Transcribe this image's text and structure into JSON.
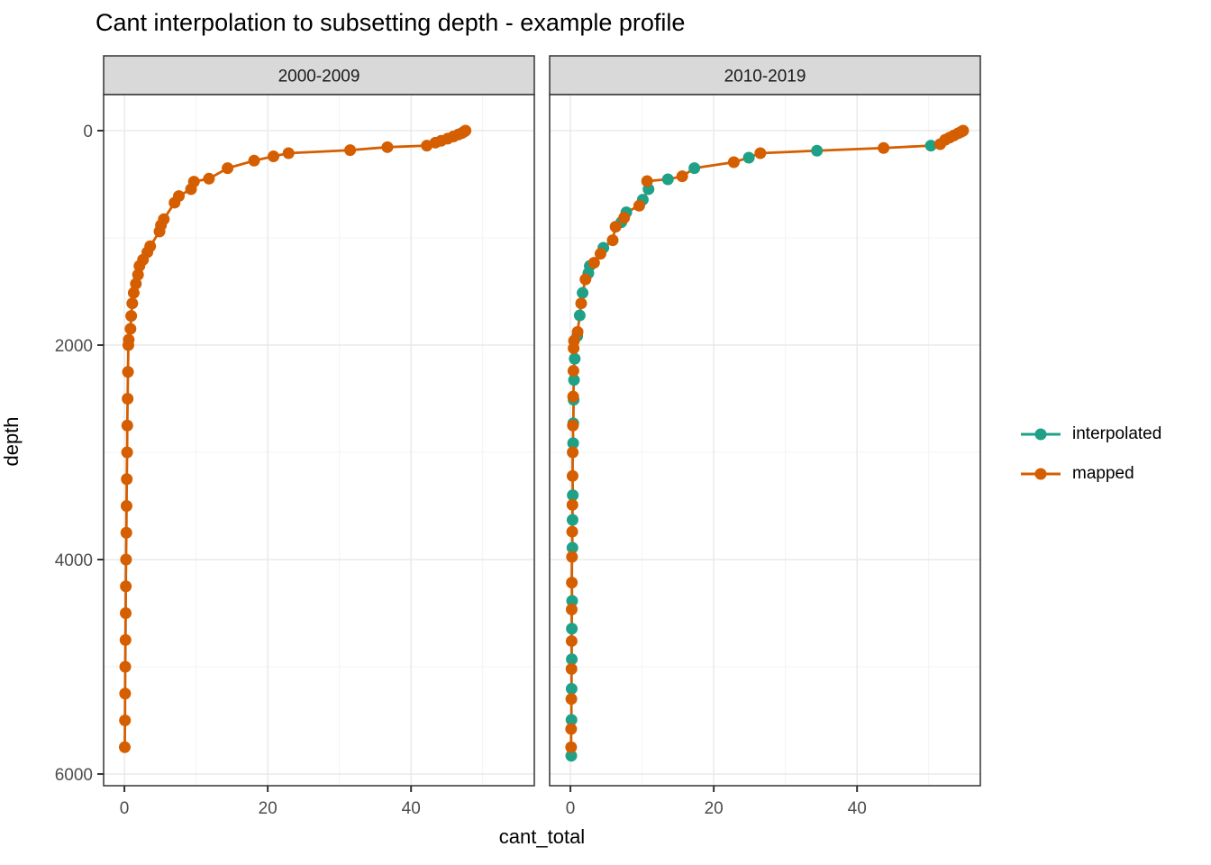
{
  "title": "Cant interpolation to subsetting depth - example profile",
  "legend": {
    "items": [
      {
        "label": "interpolated",
        "color": "#1FA187"
      },
      {
        "label": "mapped",
        "color": "#D55E00"
      }
    ]
  },
  "colors": {
    "interpolated": "#1FA187",
    "mapped": "#D55E00",
    "strip_fill": "#D9D9D9",
    "panel_border": "#333333",
    "grid_major": "#E8E8E8",
    "grid_minor": "#F3F3F3",
    "tick_label": "#4D4D4D",
    "strip_text": "#1A1A1A"
  },
  "chart_data": {
    "type": "scatter",
    "title": "Cant interpolation to subsetting depth - example profile",
    "xlabel": "cant_total",
    "ylabel": "depth",
    "y_axis_reversed": true,
    "xlim": [
      -2.9,
      57.2
    ],
    "ylim": [
      -336,
      6109
    ],
    "x_ticks": [
      0,
      20,
      40
    ],
    "x_minor_ticks": [
      10,
      30,
      50
    ],
    "y_ticks": [
      0,
      2000,
      4000,
      6000
    ],
    "y_minor_ticks": [
      1000,
      3000,
      5000
    ],
    "grid": true,
    "legend_position": "right",
    "facets": [
      {
        "label": "2000-2009",
        "series": [
          {
            "name": "mapped",
            "color": "#D55E00",
            "points": [
              [
                47.6,
                0
              ],
              [
                47.4,
                10
              ],
              [
                47.1,
                22
              ],
              [
                46.6,
                36
              ],
              [
                45.9,
                55
              ],
              [
                45.1,
                75
              ],
              [
                44.2,
                95
              ],
              [
                43.4,
                112
              ],
              [
                42.2,
                140
              ],
              [
                36.7,
                154
              ],
              [
                31.5,
                182
              ],
              [
                22.9,
                210
              ],
              [
                20.8,
                240
              ],
              [
                18.1,
                280
              ],
              [
                14.4,
                350
              ],
              [
                11.8,
                448
              ],
              [
                9.7,
                476
              ],
              [
                9.3,
                546
              ],
              [
                7.6,
                610
              ],
              [
                7.0,
                672
              ],
              [
                5.5,
                826
              ],
              [
                5.1,
                882
              ],
              [
                4.9,
                940
              ],
              [
                3.6,
                1078
              ],
              [
                3.2,
                1134
              ],
              [
                2.6,
                1204
              ],
              [
                2.1,
                1262
              ],
              [
                1.9,
                1344
              ],
              [
                1.6,
                1428
              ],
              [
                1.3,
                1513
              ],
              [
                1.1,
                1611
              ],
              [
                0.95,
                1728
              ],
              [
                0.85,
                1848
              ],
              [
                0.6,
                1950
              ],
              [
                0.55,
                2000
              ],
              [
                0.5,
                2250
              ],
              [
                0.45,
                2500
              ],
              [
                0.4,
                2750
              ],
              [
                0.38,
                3000
              ],
              [
                0.33,
                3250
              ],
              [
                0.3,
                3500
              ],
              [
                0.27,
                3750
              ],
              [
                0.23,
                4000
              ],
              [
                0.2,
                4250
              ],
              [
                0.18,
                4500
              ],
              [
                0.15,
                4750
              ],
              [
                0.12,
                5000
              ],
              [
                0.1,
                5250
              ],
              [
                0.08,
                5500
              ],
              [
                0.05,
                5750
              ]
            ]
          }
        ]
      },
      {
        "label": "2010-2019",
        "series": [
          {
            "name": "interpolated",
            "color": "#1FA187",
            "points": [
              [
                50.3,
                140
              ],
              [
                34.4,
                187
              ],
              [
                24.9,
                252
              ],
              [
                17.3,
                350
              ],
              [
                13.6,
                454
              ],
              [
                10.9,
                546
              ],
              [
                10.1,
                644
              ],
              [
                7.8,
                762
              ],
              [
                7.1,
                854
              ],
              [
                4.6,
                1092
              ],
              [
                2.7,
                1262
              ],
              [
                2.5,
                1330
              ],
              [
                1.7,
                1513
              ],
              [
                1.3,
                1723
              ],
              [
                0.95,
                1915
              ],
              [
                0.6,
                2127
              ],
              [
                0.5,
                2325
              ],
              [
                0.45,
                2510
              ],
              [
                0.4,
                2730
              ],
              [
                0.38,
                2915
              ],
              [
                0.33,
                3400
              ],
              [
                0.3,
                3630
              ],
              [
                0.28,
                3890
              ],
              [
                0.24,
                4385
              ],
              [
                0.2,
                4645
              ],
              [
                0.19,
                4930
              ],
              [
                0.17,
                5205
              ],
              [
                0.15,
                5495
              ],
              [
                0.12,
                5830
              ]
            ]
          },
          {
            "name": "mapped",
            "color": "#D55E00",
            "points": [
              [
                54.8,
                0
              ],
              [
                54.5,
                12
              ],
              [
                54.1,
                25
              ],
              [
                53.5,
                45
              ],
              [
                52.9,
                65
              ],
              [
                52.3,
                85
              ],
              [
                51.6,
                126
              ],
              [
                43.7,
                162
              ],
              [
                26.5,
                210
              ],
              [
                22.8,
                294
              ],
              [
                15.6,
                426
              ],
              [
                10.7,
                471
              ],
              [
                9.6,
                700
              ],
              [
                7.5,
                812
              ],
              [
                6.3,
                896
              ],
              [
                5.9,
                1022
              ],
              [
                4.2,
                1148
              ],
              [
                3.3,
                1232
              ],
              [
                2.1,
                1387
              ],
              [
                1.5,
                1611
              ],
              [
                1.0,
                1877
              ],
              [
                0.5,
                1961
              ],
              [
                0.45,
                2030
              ],
              [
                0.42,
                2240
              ],
              [
                0.38,
                2480
              ],
              [
                0.35,
                2750
              ],
              [
                0.32,
                3000
              ],
              [
                0.3,
                3220
              ],
              [
                0.28,
                3490
              ],
              [
                0.25,
                3740
              ],
              [
                0.22,
                3975
              ],
              [
                0.2,
                4215
              ],
              [
                0.18,
                4465
              ],
              [
                0.17,
                4760
              ],
              [
                0.15,
                5020
              ],
              [
                0.13,
                5300
              ],
              [
                0.1,
                5580
              ],
              [
                0.1,
                5750
              ]
            ]
          }
        ]
      }
    ]
  }
}
